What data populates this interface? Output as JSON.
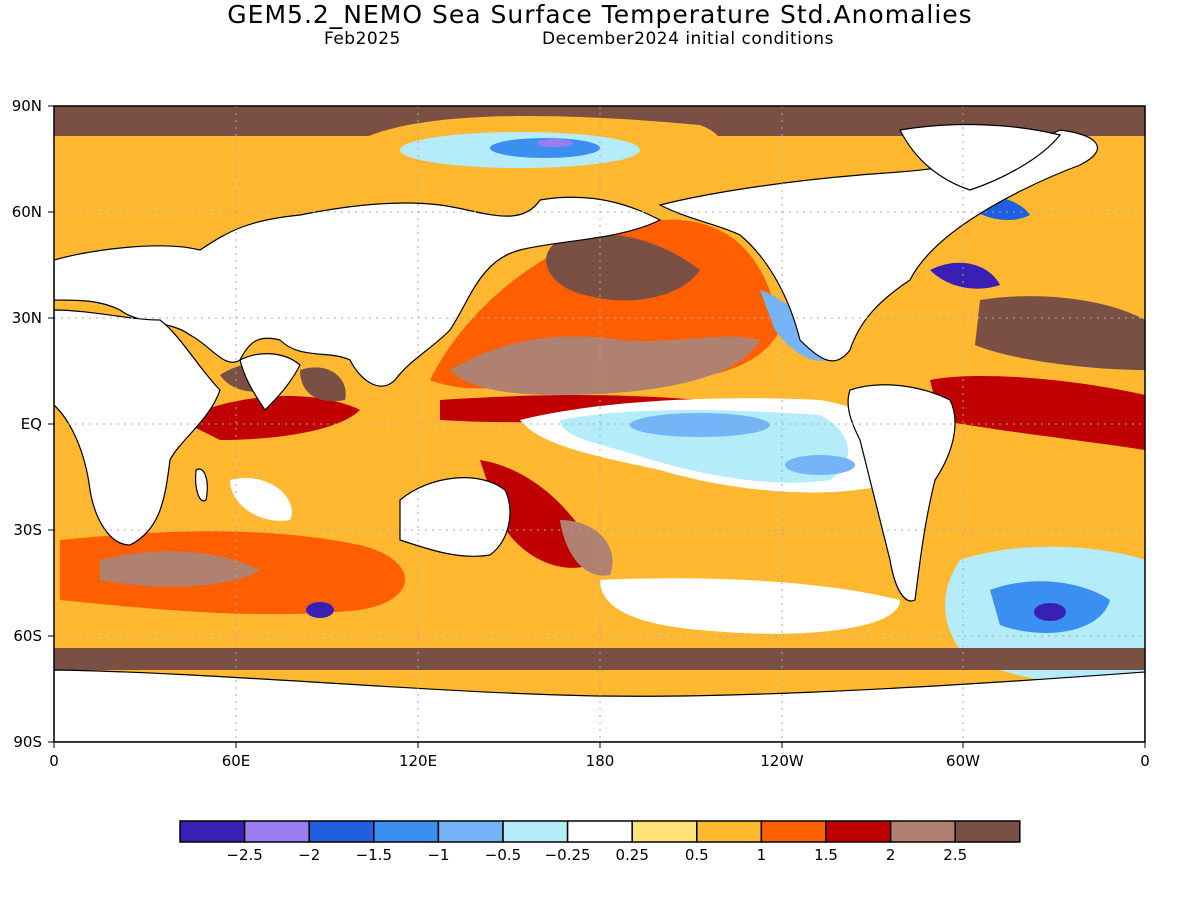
{
  "header": {
    "title": "GEM5.2_NEMO Sea Surface Temperature Std.Anomalies",
    "valid_month": "Feb2025",
    "init_conditions": "December2024 initial conditions"
  },
  "map": {
    "lat_ticks": [
      "90N",
      "60N",
      "30N",
      "EQ",
      "30S",
      "60S",
      "90S"
    ],
    "lon_ticks": [
      "0",
      "60E",
      "120E",
      "180",
      "120W",
      "60W",
      "0"
    ],
    "colors": {
      "land": "#ffffff",
      "coast": "#000000",
      "gridline": "#aaaaaa"
    }
  },
  "colorbar": {
    "colors": [
      "#3a1fb5",
      "#9b7df2",
      "#1f5fe0",
      "#3b8ff0",
      "#74b4f7",
      "#b4ecfa",
      "#ffffff",
      "#ffe27a",
      "#ffb830",
      "#ff5f00",
      "#c00000",
      "#b08070",
      "#7a4f44"
    ],
    "labels": [
      "−2.5",
      "−2",
      "−1.5",
      "−1",
      "−0.5",
      "−0.25",
      "0.25",
      "0.5",
      "1",
      "1.5",
      "2",
      "2.5"
    ]
  }
}
